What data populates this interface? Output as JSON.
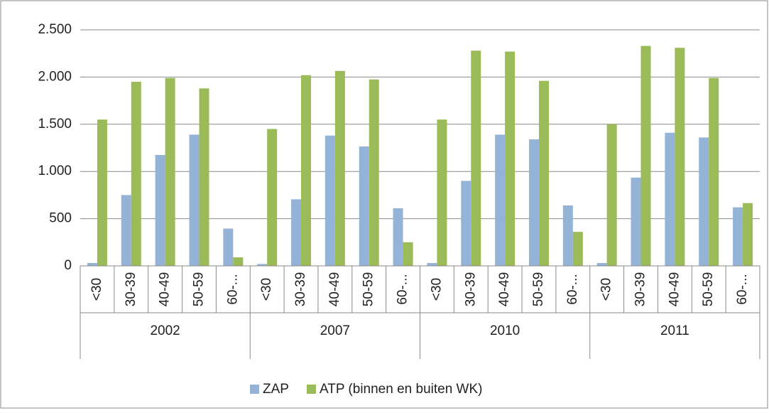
{
  "chart_data": {
    "type": "bar",
    "categories": [
      "<30",
      "30-39",
      "40-49",
      "50-59",
      "60-...",
      "<30",
      "30-39",
      "40-49",
      "50-59",
      "60-...",
      "<30",
      "30-39",
      "40-49",
      "50-59",
      "60-...",
      "<30",
      "30-39",
      "40-49",
      "50-59",
      "60-..."
    ],
    "groups": [
      "2002",
      "2007",
      "2010",
      "2011"
    ],
    "series": [
      {
        "name": "ZAP",
        "color": "#95b3d7",
        "values": [
          30,
          750,
          1175,
          1390,
          395,
          20,
          705,
          1380,
          1265,
          610,
          30,
          900,
          1390,
          1340,
          640,
          30,
          935,
          1410,
          1360,
          620
        ]
      },
      {
        "name": "ATP (binnen en buiten WK)",
        "color": "#9bbb59",
        "values": [
          1550,
          1950,
          1990,
          1880,
          90,
          1450,
          2020,
          2065,
          1975,
          250,
          1550,
          2280,
          2270,
          1960,
          360,
          1500,
          2330,
          2310,
          1990,
          665
        ]
      }
    ],
    "ylim": [
      0,
      2500
    ],
    "yticks": [
      0,
      500,
      {
        "value": 1000,
        "label": "1.000"
      },
      {
        "value": 1500,
        "label": "1.500"
      },
      {
        "value": 2000,
        "label": "2.000"
      },
      {
        "value": 2500,
        "label": "2.500"
      }
    ],
    "grid": true,
    "legend": "bottom"
  }
}
